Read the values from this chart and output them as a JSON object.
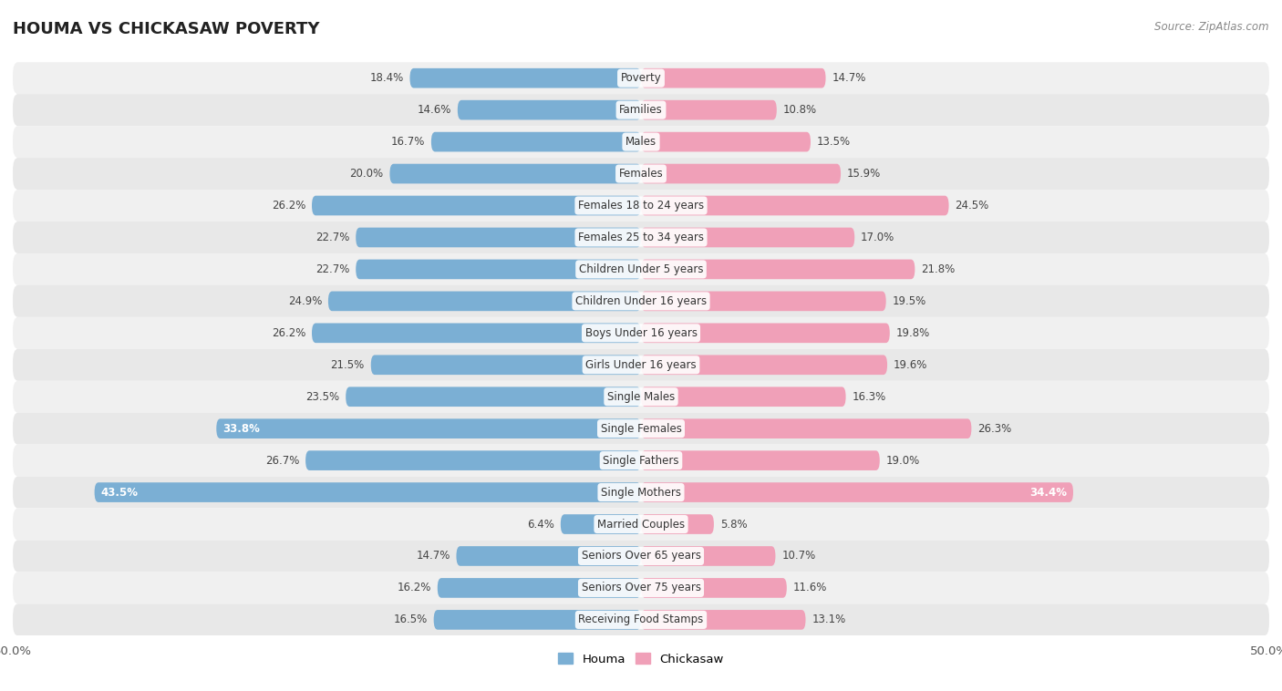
{
  "title": "HOUMA VS CHICKASAW POVERTY",
  "source": "Source: ZipAtlas.com",
  "categories": [
    "Poverty",
    "Families",
    "Males",
    "Females",
    "Females 18 to 24 years",
    "Females 25 to 34 years",
    "Children Under 5 years",
    "Children Under 16 years",
    "Boys Under 16 years",
    "Girls Under 16 years",
    "Single Males",
    "Single Females",
    "Single Fathers",
    "Single Mothers",
    "Married Couples",
    "Seniors Over 65 years",
    "Seniors Over 75 years",
    "Receiving Food Stamps"
  ],
  "houma": [
    18.4,
    14.6,
    16.7,
    20.0,
    26.2,
    22.7,
    22.7,
    24.9,
    26.2,
    21.5,
    23.5,
    33.8,
    26.7,
    43.5,
    6.4,
    14.7,
    16.2,
    16.5
  ],
  "chickasaw": [
    14.7,
    10.8,
    13.5,
    15.9,
    24.5,
    17.0,
    21.8,
    19.5,
    19.8,
    19.6,
    16.3,
    26.3,
    19.0,
    34.4,
    5.8,
    10.7,
    11.6,
    13.1
  ],
  "houma_color": "#7BAFD4",
  "chickasaw_color": "#F0A0B8",
  "houma_label": "Houma",
  "chickasaw_label": "Chickasaw",
  "axis_max": 50.0,
  "row_bg_colors": [
    "#f0f0f0",
    "#e8e8e8"
  ],
  "label_inside_threshold": 30.0
}
